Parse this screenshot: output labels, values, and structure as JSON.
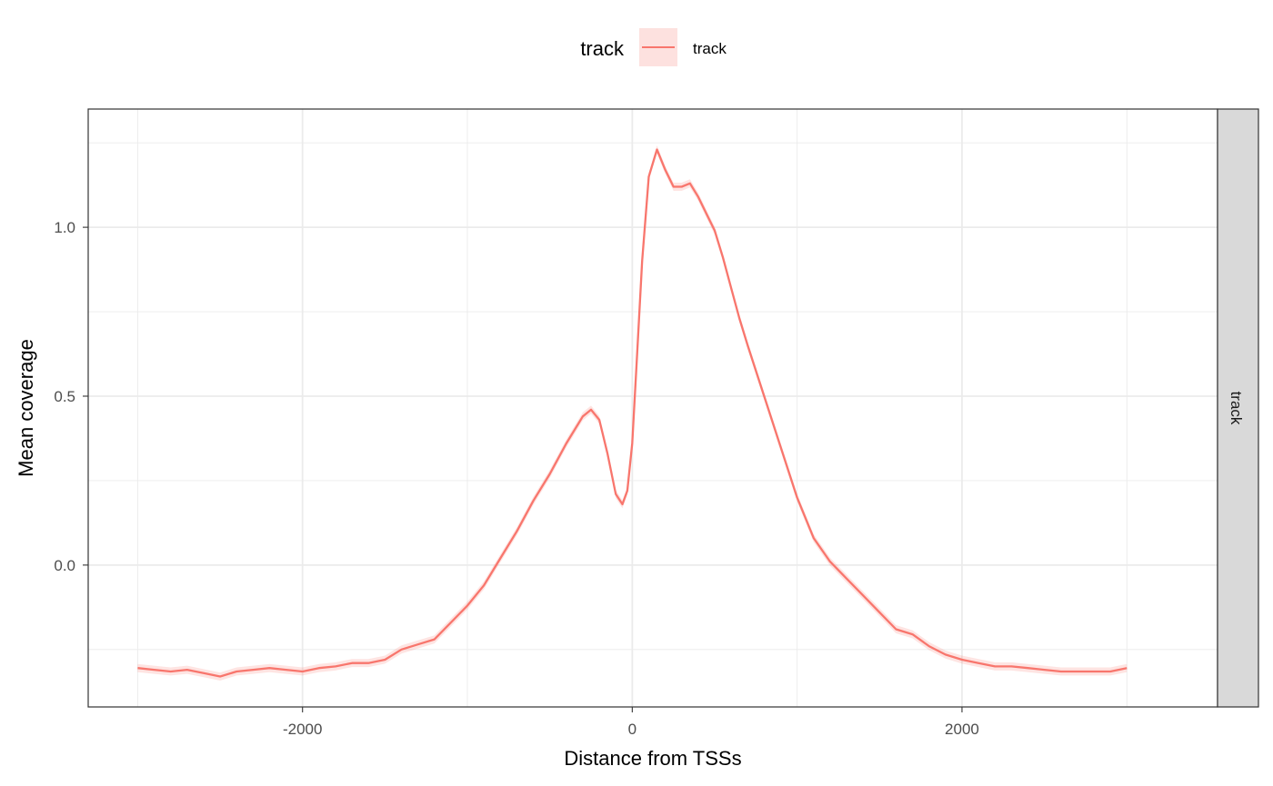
{
  "chart_data": {
    "type": "line",
    "title": "",
    "xlabel": "Distance from TSSs",
    "ylabel": "Mean coverage",
    "xlim": [
      -3300,
      3550
    ],
    "ylim": [
      -0.42,
      1.35
    ],
    "x_ticks": [
      -2000,
      0,
      2000
    ],
    "x_tick_labels": [
      "-2000",
      "0",
      "2000"
    ],
    "y_ticks": [
      0.0,
      0.5,
      1.0
    ],
    "y_tick_labels": [
      "0.0",
      "0.5",
      "1.0"
    ],
    "grid": true,
    "legend": {
      "title": "track",
      "placement": "top",
      "entries": [
        "track"
      ]
    },
    "facet_label": "track",
    "colors": {
      "line": "#F8766D",
      "ribbon": "#F8766D",
      "strip": "#D9D9D9",
      "grid": "#EBEBEB"
    },
    "series": [
      {
        "name": "track",
        "x": [
          -3000,
          -2900,
          -2800,
          -2700,
          -2600,
          -2500,
          -2400,
          -2300,
          -2200,
          -2100,
          -2000,
          -1900,
          -1800,
          -1700,
          -1600,
          -1500,
          -1400,
          -1300,
          -1200,
          -1100,
          -1000,
          -900,
          -800,
          -700,
          -600,
          -500,
          -400,
          -300,
          -250,
          -200,
          -150,
          -100,
          -60,
          -30,
          0,
          30,
          60,
          100,
          150,
          200,
          250,
          300,
          350,
          400,
          450,
          500,
          550,
          600,
          650,
          700,
          800,
          900,
          1000,
          1100,
          1200,
          1300,
          1400,
          1500,
          1600,
          1700,
          1800,
          1900,
          2000,
          2100,
          2200,
          2300,
          2400,
          2500,
          2600,
          2700,
          2800,
          2900,
          3000
        ],
        "y": [
          -0.305,
          -0.31,
          -0.315,
          -0.31,
          -0.32,
          -0.33,
          -0.315,
          -0.31,
          -0.305,
          -0.31,
          -0.315,
          -0.305,
          -0.3,
          -0.29,
          -0.29,
          -0.28,
          -0.25,
          -0.235,
          -0.22,
          -0.17,
          -0.12,
          -0.06,
          0.02,
          0.1,
          0.19,
          0.27,
          0.36,
          0.44,
          0.46,
          0.43,
          0.33,
          0.21,
          0.18,
          0.22,
          0.36,
          0.63,
          0.9,
          1.15,
          1.23,
          1.17,
          1.12,
          1.12,
          1.13,
          1.09,
          1.04,
          0.99,
          0.91,
          0.82,
          0.73,
          0.65,
          0.5,
          0.35,
          0.2,
          0.08,
          0.01,
          -0.04,
          -0.09,
          -0.14,
          -0.19,
          -0.205,
          -0.24,
          -0.265,
          -0.28,
          -0.29,
          -0.3,
          -0.3,
          -0.305,
          -0.31,
          -0.315,
          -0.315,
          -0.315,
          -0.315,
          -0.305
        ]
      }
    ]
  }
}
